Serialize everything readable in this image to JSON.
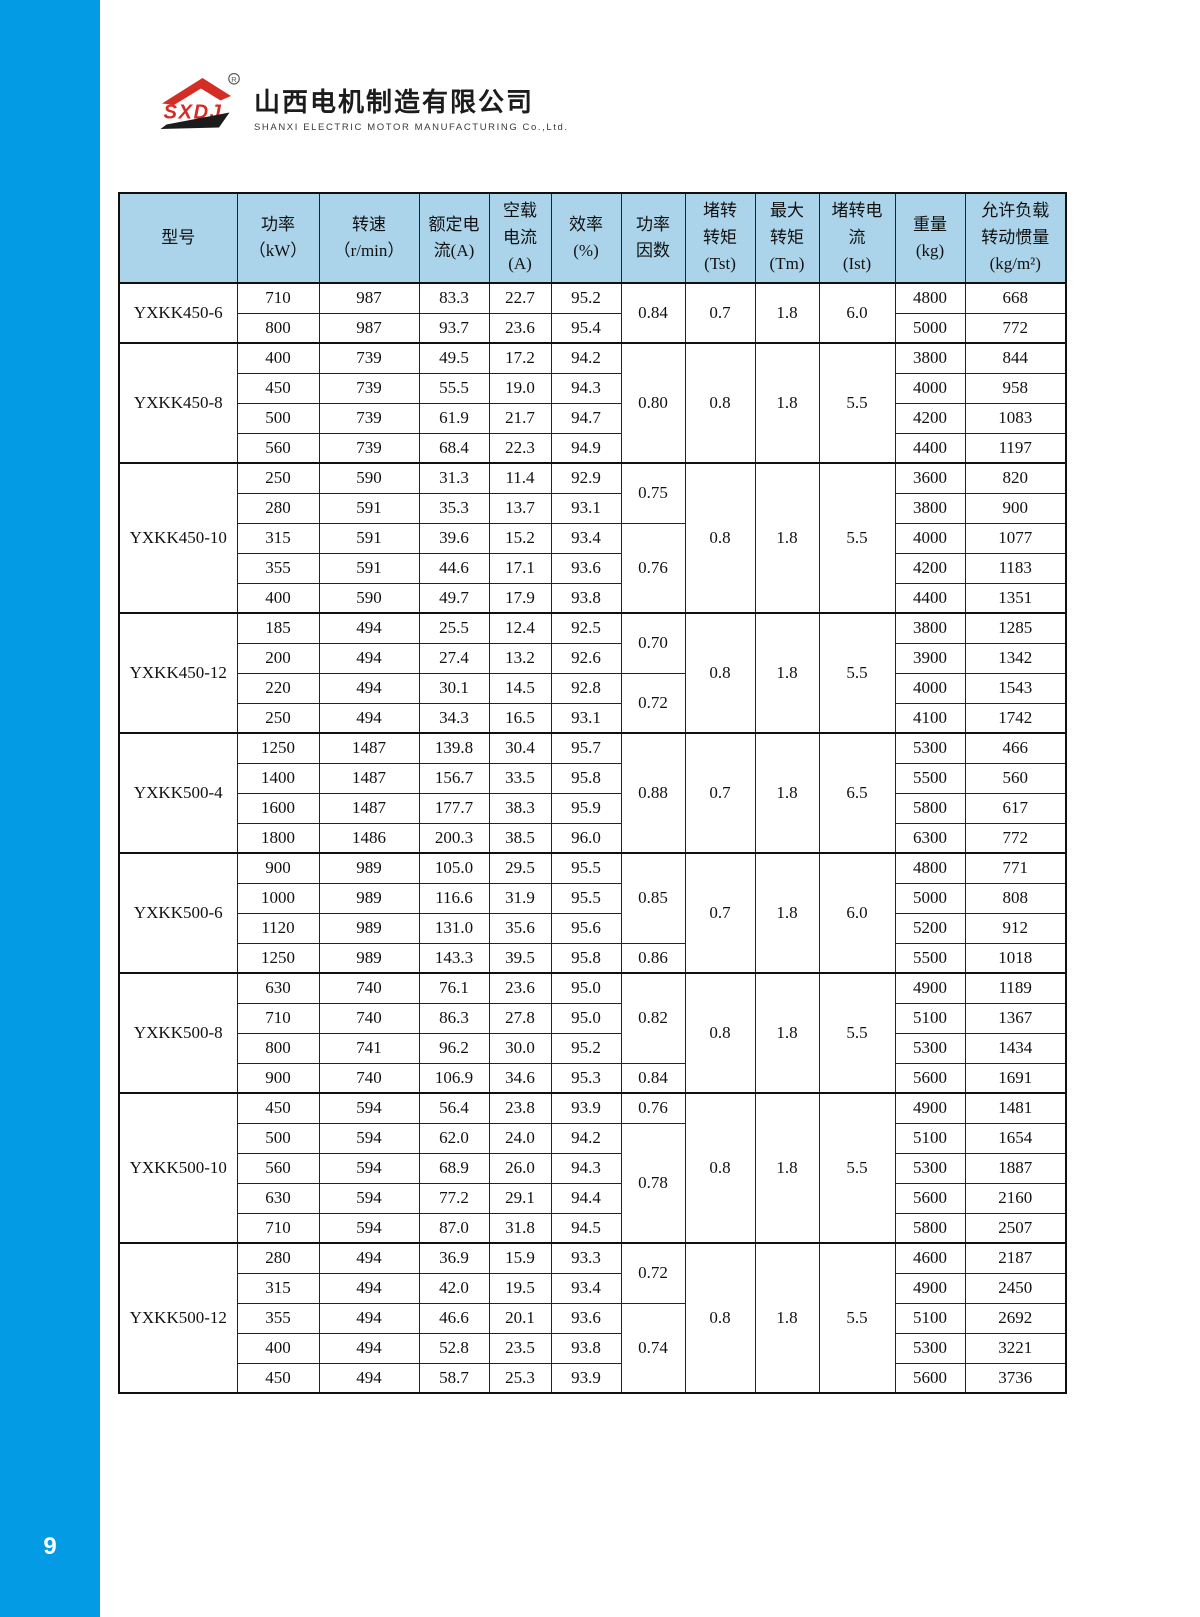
{
  "page": {
    "number": "9"
  },
  "colors": {
    "sidebar_blue": "#049BE5",
    "header_blue": "#ABD4EA",
    "logo_red": "#D42D26",
    "logo_black": "#1C1C1C"
  },
  "logo": {
    "abbr": "SXDJ",
    "reg": "®",
    "company_cn": "山西电机制造有限公司",
    "company_en": "SHANXI ELECTRIC MOTOR MANUFACTURING Co.,Ltd."
  },
  "table": {
    "headers": [
      "型号",
      "功率\n（kW）",
      "转速\n（r/min）",
      "额定电\n流(A)",
      "空载\n电流\n(A)",
      "效率\n(%)",
      "功率\n因数",
      "堵转\n转矩\n(Tst)",
      "最大\n转矩\n(Tm)",
      "堵转电\n流\n(Ist)",
      "重量\n(kg)",
      "允许负载\n转动惯量\n(kg/m²)"
    ],
    "sections": [
      {
        "model": "YXKK450-6",
        "pf_groups": [
          {
            "value": "0.84",
            "span": 2
          }
        ],
        "tst": "0.7",
        "tm": "1.8",
        "ist": "6.0",
        "rows": [
          [
            "710",
            "987",
            "83.3",
            "22.7",
            "95.2",
            "4800",
            "668"
          ],
          [
            "800",
            "987",
            "93.7",
            "23.6",
            "95.4",
            "5000",
            "772"
          ]
        ]
      },
      {
        "model": "YXKK450-8",
        "pf_groups": [
          {
            "value": "0.80",
            "span": 4
          }
        ],
        "tst": "0.8",
        "tm": "1.8",
        "ist": "5.5",
        "rows": [
          [
            "400",
            "739",
            "49.5",
            "17.2",
            "94.2",
            "3800",
            "844"
          ],
          [
            "450",
            "739",
            "55.5",
            "19.0",
            "94.3",
            "4000",
            "958"
          ],
          [
            "500",
            "739",
            "61.9",
            "21.7",
            "94.7",
            "4200",
            "1083"
          ],
          [
            "560",
            "739",
            "68.4",
            "22.3",
            "94.9",
            "4400",
            "1197"
          ]
        ]
      },
      {
        "model": "YXKK450-10",
        "pf_groups": [
          {
            "value": "0.75",
            "span": 2
          },
          {
            "value": "0.76",
            "span": 3
          }
        ],
        "tst": "0.8",
        "tm": "1.8",
        "ist": "5.5",
        "rows": [
          [
            "250",
            "590",
            "31.3",
            "11.4",
            "92.9",
            "3600",
            "820"
          ],
          [
            "280",
            "591",
            "35.3",
            "13.7",
            "93.1",
            "3800",
            "900"
          ],
          [
            "315",
            "591",
            "39.6",
            "15.2",
            "93.4",
            "4000",
            "1077"
          ],
          [
            "355",
            "591",
            "44.6",
            "17.1",
            "93.6",
            "4200",
            "1183"
          ],
          [
            "400",
            "590",
            "49.7",
            "17.9",
            "93.8",
            "4400",
            "1351"
          ]
        ]
      },
      {
        "model": "YXKK450-12",
        "pf_groups": [
          {
            "value": "0.70",
            "span": 2
          },
          {
            "value": "0.72",
            "span": 2
          }
        ],
        "tst": "0.8",
        "tm": "1.8",
        "ist": "5.5",
        "rows": [
          [
            "185",
            "494",
            "25.5",
            "12.4",
            "92.5",
            "3800",
            "1285"
          ],
          [
            "200",
            "494",
            "27.4",
            "13.2",
            "92.6",
            "3900",
            "1342"
          ],
          [
            "220",
            "494",
            "30.1",
            "14.5",
            "92.8",
            "4000",
            "1543"
          ],
          [
            "250",
            "494",
            "34.3",
            "16.5",
            "93.1",
            "4100",
            "1742"
          ]
        ]
      },
      {
        "model": "YXKK500-4",
        "pf_groups": [
          {
            "value": "0.88",
            "span": 4
          }
        ],
        "tst": "0.7",
        "tm": "1.8",
        "ist": "6.5",
        "rows": [
          [
            "1250",
            "1487",
            "139.8",
            "30.4",
            "95.7",
            "5300",
            "466"
          ],
          [
            "1400",
            "1487",
            "156.7",
            "33.5",
            "95.8",
            "5500",
            "560"
          ],
          [
            "1600",
            "1487",
            "177.7",
            "38.3",
            "95.9",
            "5800",
            "617"
          ],
          [
            "1800",
            "1486",
            "200.3",
            "38.5",
            "96.0",
            "6300",
            "772"
          ]
        ]
      },
      {
        "model": "YXKK500-6",
        "pf_groups": [
          {
            "value": "0.85",
            "span": 3
          },
          {
            "value": "0.86",
            "span": 1
          }
        ],
        "tst": "0.7",
        "tm": "1.8",
        "ist": "6.0",
        "rows": [
          [
            "900",
            "989",
            "105.0",
            "29.5",
            "95.5",
            "4800",
            "771"
          ],
          [
            "1000",
            "989",
            "116.6",
            "31.9",
            "95.5",
            "5000",
            "808"
          ],
          [
            "1120",
            "989",
            "131.0",
            "35.6",
            "95.6",
            "5200",
            "912"
          ],
          [
            "1250",
            "989",
            "143.3",
            "39.5",
            "95.8",
            "5500",
            "1018"
          ]
        ]
      },
      {
        "model": "YXKK500-8",
        "pf_groups": [
          {
            "value": "0.82",
            "span": 3
          },
          {
            "value": "0.84",
            "span": 1
          }
        ],
        "tst": "0.8",
        "tm": "1.8",
        "ist": "5.5",
        "rows": [
          [
            "630",
            "740",
            "76.1",
            "23.6",
            "95.0",
            "4900",
            "1189"
          ],
          [
            "710",
            "740",
            "86.3",
            "27.8",
            "95.0",
            "5100",
            "1367"
          ],
          [
            "800",
            "741",
            "96.2",
            "30.0",
            "95.2",
            "5300",
            "1434"
          ],
          [
            "900",
            "740",
            "106.9",
            "34.6",
            "95.3",
            "5600",
            "1691"
          ]
        ]
      },
      {
        "model": "YXKK500-10",
        "pf_groups": [
          {
            "value": "0.76",
            "span": 1
          },
          {
            "value": "0.78",
            "span": 4
          }
        ],
        "tst": "0.8",
        "tm": "1.8",
        "ist": "5.5",
        "rows": [
          [
            "450",
            "594",
            "56.4",
            "23.8",
            "93.9",
            "4900",
            "1481"
          ],
          [
            "500",
            "594",
            "62.0",
            "24.0",
            "94.2",
            "5100",
            "1654"
          ],
          [
            "560",
            "594",
            "68.9",
            "26.0",
            "94.3",
            "5300",
            "1887"
          ],
          [
            "630",
            "594",
            "77.2",
            "29.1",
            "94.4",
            "5600",
            "2160"
          ],
          [
            "710",
            "594",
            "87.0",
            "31.8",
            "94.5",
            "5800",
            "2507"
          ]
        ]
      },
      {
        "model": "YXKK500-12",
        "pf_groups": [
          {
            "value": "0.72",
            "span": 2
          },
          {
            "value": "0.74",
            "span": 3
          }
        ],
        "tst": "0.8",
        "tm": "1.8",
        "ist": "5.5",
        "rows": [
          [
            "280",
            "494",
            "36.9",
            "15.9",
            "93.3",
            "4600",
            "2187"
          ],
          [
            "315",
            "494",
            "42.0",
            "19.5",
            "93.4",
            "4900",
            "2450"
          ],
          [
            "355",
            "494",
            "46.6",
            "20.1",
            "93.6",
            "5100",
            "2692"
          ],
          [
            "400",
            "494",
            "52.8",
            "23.5",
            "93.8",
            "5300",
            "3221"
          ],
          [
            "450",
            "494",
            "58.7",
            "25.3",
            "93.9",
            "5600",
            "3736"
          ]
        ]
      }
    ]
  }
}
